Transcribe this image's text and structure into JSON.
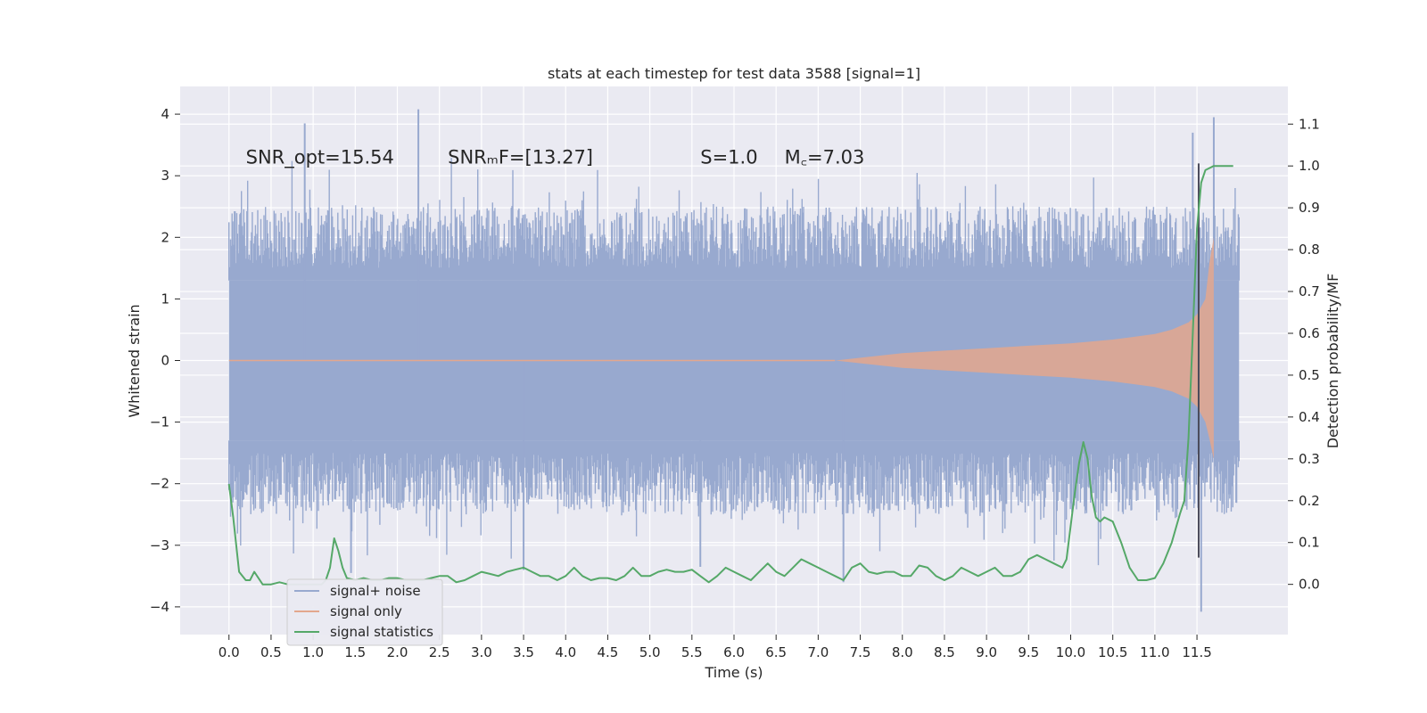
{
  "chart_data": {
    "type": "line",
    "title": "stats at each timestep for test data 3588 [signal=1]",
    "xlabel": "Time (s)",
    "ylabel": "Whitened strain",
    "ylabel_right": "Detection probability/MF",
    "xlim": [
      -0.58,
      12.58
    ],
    "ylim": [
      -4.45,
      4.45
    ],
    "ylim_right": [
      -0.12,
      1.19
    ],
    "x_ticks": [
      "0.0",
      "0.5",
      "1.0",
      "1.5",
      "2.0",
      "2.5",
      "3.0",
      "3.5",
      "4.0",
      "4.5",
      "5.0",
      "5.5",
      "6.0",
      "6.5",
      "7.0",
      "7.5",
      "8.0",
      "8.5",
      "9.0",
      "9.5",
      "10.0",
      "10.5",
      "11.0",
      "11.5"
    ],
    "y_ticks": [
      "4",
      "3",
      "2",
      "1",
      "0",
      "−1",
      "−2",
      "−3",
      "−4"
    ],
    "y_right_ticks": [
      "1.1",
      "1.0",
      "0.9",
      "0.8",
      "0.7",
      "0.6",
      "0.5",
      "0.4",
      "0.3",
      "0.2",
      "0.1",
      "0.0"
    ],
    "grid": true,
    "legend_position": "lower-left",
    "annotations": [
      {
        "text": "SNR_opt=15.54",
        "x": 0.2,
        "y": 3.3
      },
      {
        "text": "SNRₘF=[13.27]",
        "x": 2.6,
        "y": 3.3
      },
      {
        "text": "S=1.0",
        "x": 5.6,
        "y": 3.3
      },
      {
        "text": "M꜀=7.03",
        "x": 6.6,
        "y": 3.3
      }
    ],
    "marker_line": {
      "x": 11.52,
      "y_range": [
        -3.2,
        3.2
      ]
    },
    "series": [
      {
        "name": "signal+ noise",
        "color": "#98a9cf",
        "axis": "left",
        "envelope_x": [
          0.0,
          12.0
        ],
        "core_amplitude": 1.3,
        "typical_peak": 2.0,
        "extreme_peaks": [
          {
            "x": 0.9,
            "y": 3.85
          },
          {
            "x": 2.25,
            "y": 4.08
          },
          {
            "x": 1.45,
            "y": -3.45
          },
          {
            "x": 7.3,
            "y": -3.6
          },
          {
            "x": 11.55,
            "y": -4.08
          },
          {
            "x": 11.7,
            "y": 3.95
          },
          {
            "x": 3.5,
            "y": -3.4
          },
          {
            "x": 5.6,
            "y": -3.35
          },
          {
            "x": 11.45,
            "y": 3.7
          }
        ]
      },
      {
        "name": "signal only",
        "color": "#e3a78d",
        "axis": "left",
        "x": [
          7.2,
          7.6,
          8.0,
          8.5,
          9.0,
          9.5,
          10.0,
          10.5,
          11.0,
          11.2,
          11.4,
          11.5,
          11.6,
          11.65,
          11.7
        ],
        "amplitude": [
          0.0,
          0.06,
          0.12,
          0.16,
          0.2,
          0.24,
          0.28,
          0.34,
          0.43,
          0.5,
          0.62,
          0.75,
          1.0,
          1.6,
          2.0
        ]
      },
      {
        "name": "signal statistics",
        "color": "#55a868",
        "axis": "right",
        "x": [
          0.0,
          0.05,
          0.12,
          0.2,
          0.25,
          0.3,
          0.4,
          0.5,
          0.6,
          0.7,
          0.8,
          0.9,
          1.0,
          1.1,
          1.15,
          1.2,
          1.25,
          1.3,
          1.35,
          1.4,
          1.5,
          1.6,
          1.7,
          1.8,
          1.9,
          2.0,
          2.1,
          2.2,
          2.3,
          2.4,
          2.5,
          2.6,
          2.7,
          2.8,
          2.9,
          3.0,
          3.1,
          3.2,
          3.3,
          3.4,
          3.5,
          3.6,
          3.7,
          3.8,
          3.9,
          4.0,
          4.1,
          4.2,
          4.3,
          4.4,
          4.5,
          4.6,
          4.7,
          4.8,
          4.9,
          5.0,
          5.1,
          5.2,
          5.3,
          5.4,
          5.5,
          5.6,
          5.7,
          5.8,
          5.9,
          6.0,
          6.1,
          6.2,
          6.3,
          6.4,
          6.5,
          6.6,
          6.7,
          6.8,
          6.9,
          7.0,
          7.1,
          7.2,
          7.3,
          7.4,
          7.5,
          7.6,
          7.7,
          7.8,
          7.9,
          8.0,
          8.1,
          8.2,
          8.3,
          8.4,
          8.5,
          8.6,
          8.7,
          8.8,
          8.9,
          9.0,
          9.1,
          9.2,
          9.3,
          9.4,
          9.5,
          9.6,
          9.7,
          9.8,
          9.9,
          9.95,
          10.0,
          10.05,
          10.1,
          10.15,
          10.2,
          10.25,
          10.3,
          10.35,
          10.4,
          10.5,
          10.6,
          10.7,
          10.8,
          10.9,
          11.0,
          11.1,
          11.2,
          11.3,
          11.35,
          11.4,
          11.45,
          11.5,
          11.55,
          11.6,
          11.7,
          11.8,
          11.9,
          11.93
        ],
        "values": [
          0.24,
          0.16,
          0.03,
          0.01,
          0.01,
          0.03,
          0.0,
          0.0,
          0.005,
          0.0,
          0.0,
          0.0,
          0.0,
          0.0,
          0.01,
          0.04,
          0.11,
          0.08,
          0.04,
          0.015,
          0.01,
          0.015,
          0.01,
          0.01,
          0.015,
          0.015,
          0.01,
          0.01,
          0.01,
          0.015,
          0.02,
          0.02,
          0.005,
          0.01,
          0.02,
          0.03,
          0.025,
          0.02,
          0.03,
          0.035,
          0.04,
          0.03,
          0.02,
          0.02,
          0.01,
          0.02,
          0.04,
          0.02,
          0.01,
          0.015,
          0.015,
          0.01,
          0.02,
          0.04,
          0.02,
          0.02,
          0.03,
          0.035,
          0.03,
          0.03,
          0.035,
          0.02,
          0.005,
          0.02,
          0.04,
          0.03,
          0.02,
          0.01,
          0.03,
          0.05,
          0.03,
          0.02,
          0.04,
          0.06,
          0.05,
          0.04,
          0.03,
          0.02,
          0.01,
          0.04,
          0.05,
          0.03,
          0.025,
          0.03,
          0.03,
          0.02,
          0.02,
          0.045,
          0.04,
          0.02,
          0.01,
          0.02,
          0.04,
          0.03,
          0.02,
          0.03,
          0.04,
          0.02,
          0.02,
          0.03,
          0.06,
          0.07,
          0.06,
          0.05,
          0.04,
          0.06,
          0.14,
          0.22,
          0.29,
          0.34,
          0.3,
          0.21,
          0.16,
          0.15,
          0.16,
          0.15,
          0.1,
          0.04,
          0.01,
          0.01,
          0.015,
          0.05,
          0.1,
          0.17,
          0.2,
          0.35,
          0.6,
          0.85,
          0.96,
          0.99,
          1.0,
          1.0,
          1.0,
          1.0
        ]
      }
    ]
  }
}
